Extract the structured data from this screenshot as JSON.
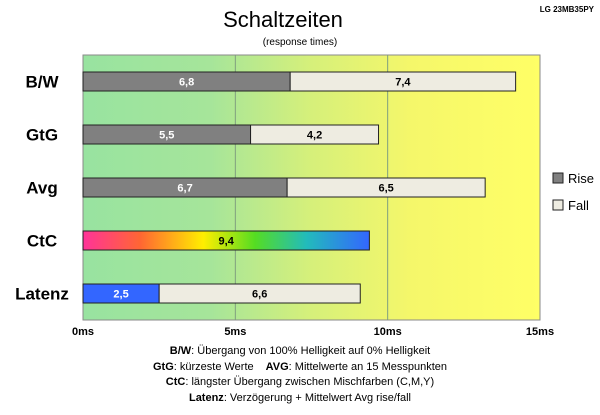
{
  "chart_data": {
    "type": "bar",
    "orientation": "horizontal",
    "stacked": true,
    "title": "Schaltzeiten",
    "subtitle": "(response times)",
    "model": "LG 23MB35PY",
    "categories": [
      "B/W",
      "GtG",
      "Avg",
      "CtC",
      "Latenz"
    ],
    "series": [
      {
        "name": "Rise",
        "values": [
          6.8,
          5.5,
          6.7,
          9.4,
          2.5
        ],
        "labels": [
          "6,8",
          "5,5",
          "6,7",
          "9,4",
          "2,5"
        ],
        "color": "#808080"
      },
      {
        "name": "Fall",
        "values": [
          7.4,
          4.2,
          6.5,
          null,
          6.6
        ],
        "labels": [
          "7,4",
          "4,2",
          "6,5",
          "",
          "6,6"
        ],
        "color": "#eeece1"
      }
    ],
    "special_colors": {
      "CtC": "rainbow",
      "Latenz_first": "#3366ff"
    },
    "xlim": [
      0,
      15
    ],
    "xticks": [
      0,
      5,
      10,
      15
    ],
    "xtick_labels": [
      "0ms",
      "5ms",
      "10ms",
      "15ms"
    ],
    "xlabel": "",
    "ylabel": "",
    "grid": true,
    "legend_position": "right",
    "background": "gradient green-to-yellow"
  },
  "notes": {
    "bw_key": "B/W",
    "bw_text": ":  Übergang von 100% Helligkeit auf 0% Helligkeit",
    "gtg_key": "GtG",
    "gtg_text": ": kürzeste  Werte",
    "avg_key": "AVG",
    "avg_text": ": Mittelwerte  an 15 Messpunkten",
    "ctc_key": "CtC",
    "ctc_text": ": längster Übergang  zwischen Mischfarben (C,M,Y)",
    "latenz_key": "Latenz",
    "latenz_text": ": Verzögerung  + Mittelwert  Avg rise/fall"
  }
}
